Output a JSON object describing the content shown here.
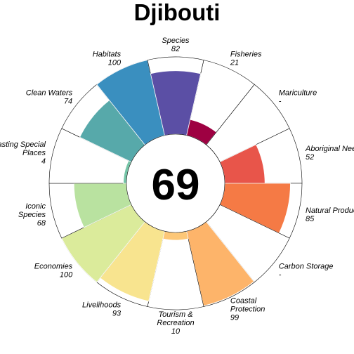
{
  "chart_data": {
    "type": "flower",
    "title": "Djibouti",
    "overall_score": "69",
    "max_value": 100,
    "petals": [
      {
        "label": [
          "Fisheries"
        ],
        "value_label": "21",
        "value": 21,
        "color": "#9E0142"
      },
      {
        "label": [
          "Mariculture"
        ],
        "value_label": "-",
        "value": null,
        "color": "#D53E4F"
      },
      {
        "label": [
          "Aboriginal Needs"
        ],
        "value_label": "52",
        "value": 52,
        "color": "#E8554A"
      },
      {
        "label": [
          "Natural Products"
        ],
        "value_label": "85",
        "value": 85,
        "color": "#F57A45"
      },
      {
        "label": [
          "Carbon Storage"
        ],
        "value_label": "-",
        "value": null,
        "color": "#FDAE61"
      },
      {
        "label": [
          "Coastal",
          "Protection"
        ],
        "value_label": "99",
        "value": 99,
        "color": "#FDB46A"
      },
      {
        "label": [
          "Tourism &",
          "Recreation"
        ],
        "value_label": "10",
        "value": 10,
        "color": "#FDC777"
      },
      {
        "label": [
          "Livelihoods"
        ],
        "value_label": "93",
        "value": 93,
        "color": "#F8E48F"
      },
      {
        "label": [
          "Economies"
        ],
        "value_label": "100",
        "value": 100,
        "color": "#DBEB9B"
      },
      {
        "label": [
          "Iconic",
          "Species"
        ],
        "value_label": "68",
        "value": 68,
        "color": "#B9E2A0"
      },
      {
        "label": [
          "Lasting Special",
          "Places"
        ],
        "value_label": "4",
        "value": 4,
        "color": "#74C4A6"
      },
      {
        "label": [
          "Clean Waters"
        ],
        "value_label": "74",
        "value": 74,
        "color": "#57A9AA"
      },
      {
        "label": [
          "Habitats"
        ],
        "value_label": "100",
        "value": 100,
        "color": "#3A8FBF"
      },
      {
        "label": [
          "Species"
        ],
        "value_label": "82",
        "value": 82,
        "color": "#5B4FA5"
      }
    ]
  }
}
